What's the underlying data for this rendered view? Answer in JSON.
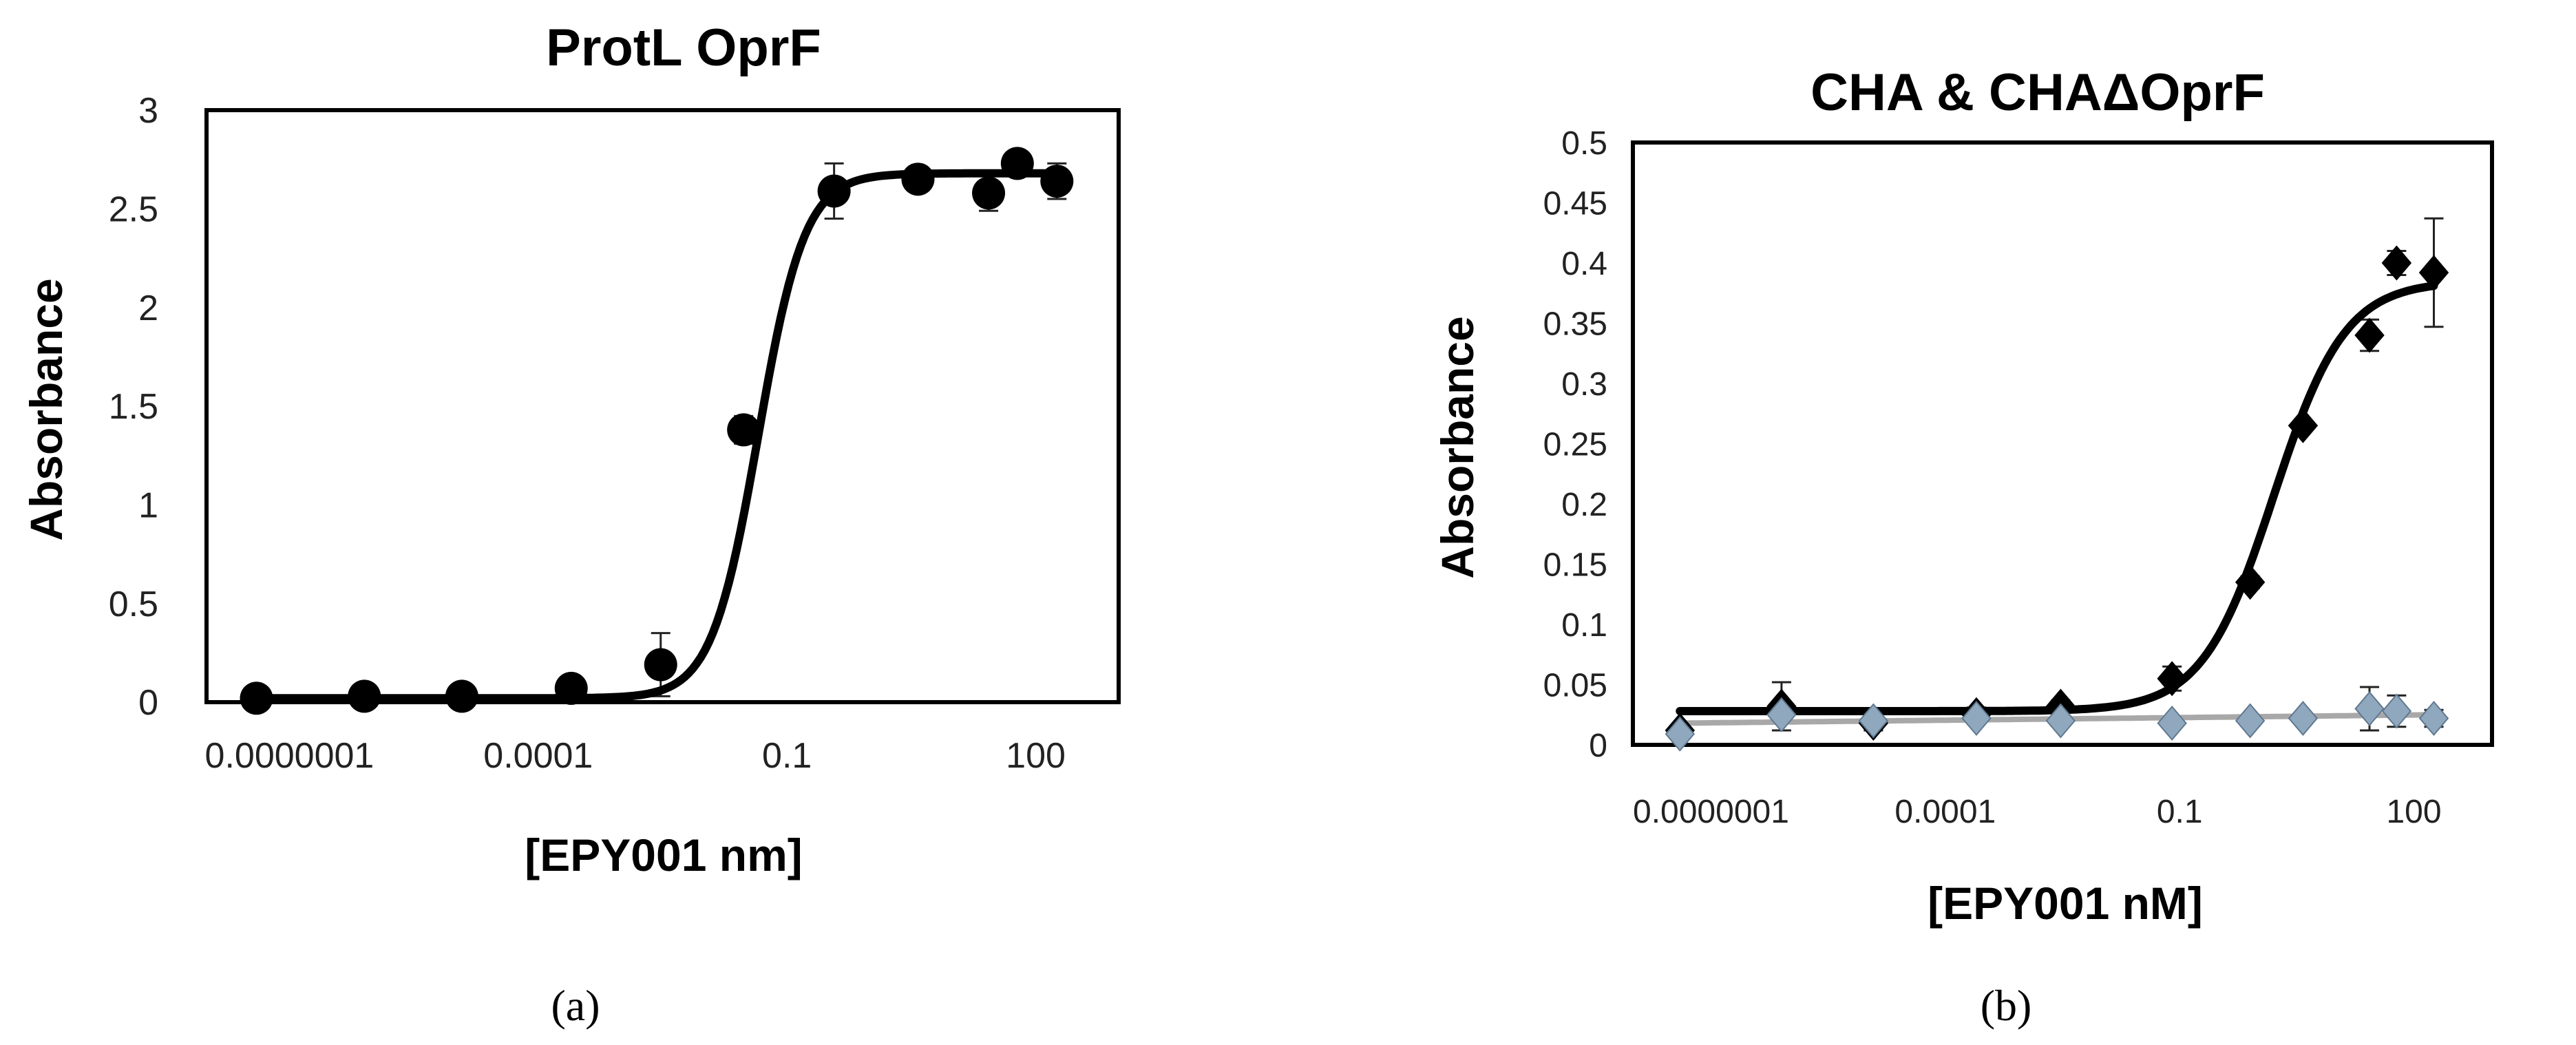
{
  "chart_data": [
    {
      "panel": "(a)",
      "type": "scatter",
      "title": "ProtL OprF",
      "xlabel": "[EPY001 nm]",
      "ylabel": "Absorbance",
      "xscale": "log",
      "xlim": [
        1e-08,
        1000
      ],
      "ylim": [
        0,
        3
      ],
      "xticks": [
        "0.0000001",
        "0.0001",
        "0.1",
        "100"
      ],
      "xtick_values": [
        1e-07,
        0.0001,
        0.1,
        100
      ],
      "yticks": [
        "0",
        "0.5",
        "1",
        "1.5",
        "2",
        "2.5",
        "3"
      ],
      "ytick_values": [
        0,
        0.5,
        1,
        1.5,
        2,
        2.5,
        3
      ],
      "grid": false,
      "series": [
        {
          "marker": "circle",
          "color": "#000000",
          "x": [
            4e-08,
            8e-07,
            1.2e-05,
            0.00025,
            0.003,
            0.03,
            0.37,
            3.8,
            27,
            60,
            180
          ],
          "y": [
            0.02,
            0.03,
            0.03,
            0.07,
            0.19,
            1.38,
            2.59,
            2.65,
            2.58,
            2.73,
            2.64
          ],
          "yerr": [
            0.0,
            0.0,
            0.0,
            0.03,
            0.16,
            0.07,
            0.14,
            0.0,
            0.09,
            0.0,
            0.09
          ],
          "fit": {
            "bottom": 0.02,
            "top": 2.68,
            "ec50": 0.045,
            "hill": 1.55,
            "color": "#000000"
          }
        }
      ]
    },
    {
      "panel": "(b)",
      "type": "scatter",
      "title": "CHA & CHAΔOprF",
      "xlabel": "[EPY001 nM]",
      "ylabel": "Absorbance",
      "xscale": "log",
      "xlim": [
        1e-08,
        1000
      ],
      "ylim": [
        0,
        0.5
      ],
      "xticks": [
        "0.0000001",
        "0.0001",
        "0.1",
        "100"
      ],
      "xtick_values": [
        1e-07,
        0.0001,
        0.1,
        100
      ],
      "yticks": [
        "0",
        "0.05",
        "0.1",
        "0.15",
        "0.2",
        "0.25",
        "0.3",
        "0.35",
        "0.4",
        "0.45",
        "0.5"
      ],
      "ytick_values": [
        0,
        0.05,
        0.1,
        0.15,
        0.2,
        0.25,
        0.3,
        0.35,
        0.4,
        0.45,
        0.5
      ],
      "grid": false,
      "series": [
        {
          "marker": "diamond",
          "color": "#000000",
          "x": [
            4e-08,
            8e-07,
            1.2e-05,
            0.00025,
            0.003,
            0.08,
            0.8,
            3.8,
            27,
            60,
            180
          ],
          "y": [
            0.012,
            0.032,
            0.018,
            0.025,
            0.032,
            0.055,
            0.135,
            0.265,
            0.34,
            0.4,
            0.392
          ],
          "yerr": [
            0.0,
            0.02,
            0.006,
            0.006,
            0.005,
            0.01,
            0.005,
            0.0,
            0.013,
            0.01,
            0.045
          ],
          "fit": {
            "bottom": 0.028,
            "top": 0.385,
            "ec50": 1.6,
            "hill": 0.95,
            "color": "#000000"
          }
        },
        {
          "marker": "diamond",
          "color": "#8fa8bd",
          "x": [
            4e-08,
            8e-07,
            1.2e-05,
            0.00025,
            0.003,
            0.08,
            0.8,
            3.8,
            27,
            60,
            180
          ],
          "y": [
            0.009,
            0.025,
            0.02,
            0.022,
            0.02,
            0.018,
            0.02,
            0.022,
            0.03,
            0.028,
            0.022
          ],
          "yerr": [
            0.0,
            0.007,
            0.004,
            0.004,
            0.004,
            0.003,
            0.003,
            0.003,
            0.018,
            0.013,
            0.007
          ],
          "fit": {
            "type": "linear-log",
            "start": 0.018,
            "end": 0.025,
            "color": "#a8a8a8"
          }
        }
      ]
    }
  ]
}
